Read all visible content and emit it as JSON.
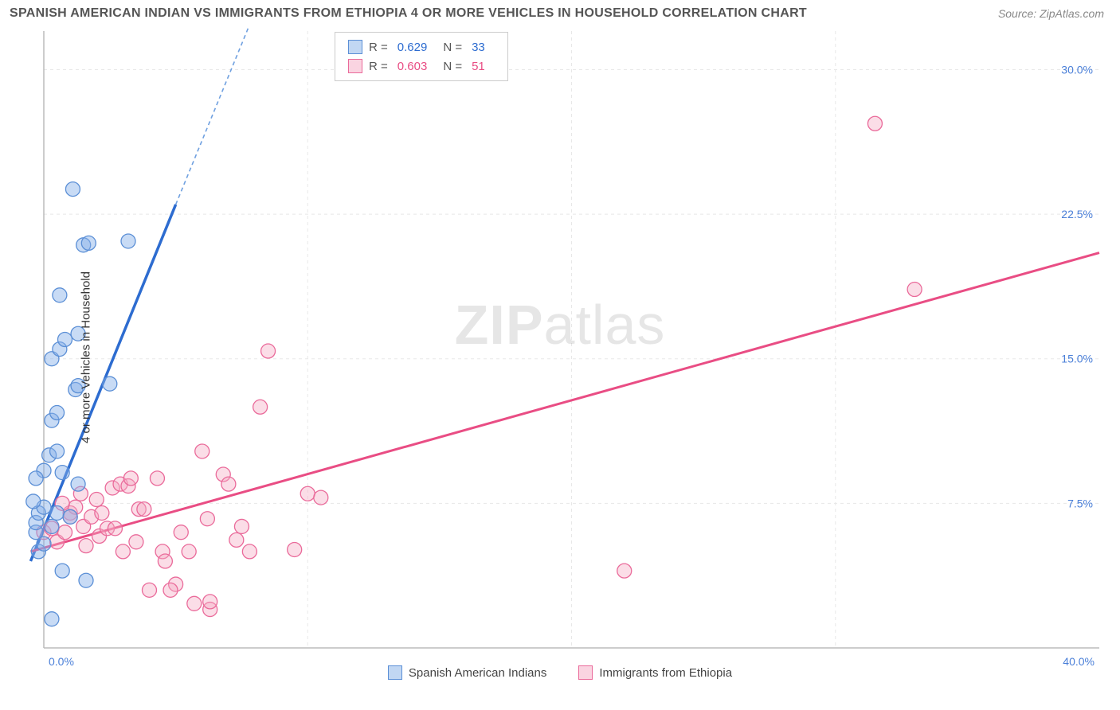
{
  "title": "SPANISH AMERICAN INDIAN VS IMMIGRANTS FROM ETHIOPIA 4 OR MORE VEHICLES IN HOUSEHOLD CORRELATION CHART",
  "source": "Source: ZipAtlas.com",
  "y_axis_label": "4 or more Vehicles in Household",
  "watermark_bold": "ZIP",
  "watermark_light": "atlas",
  "chart": {
    "type": "scatter",
    "xlim": [
      0,
      40
    ],
    "ylim": [
      0,
      32
    ],
    "x_ticks": [
      "0.0%",
      "40.0%"
    ],
    "y_ticks": [
      {
        "v": 7.5,
        "label": "7.5%"
      },
      {
        "v": 15.0,
        "label": "15.0%"
      },
      {
        "v": 22.5,
        "label": "22.5%"
      },
      {
        "v": 30.0,
        "label": "30.0%"
      }
    ],
    "series": [
      {
        "name": "Spanish American Indians",
        "color_fill": "rgba(132,175,232,0.45)",
        "color_stroke": "#5b8fd6",
        "R": "0.629",
        "N": "33",
        "trend": {
          "x1": -0.5,
          "y1": 4.5,
          "x2": 5.0,
          "y2": 23.0,
          "dash_to_x": 8.0,
          "dash_to_y": 33.0
        },
        "points": [
          [
            -0.2,
            5.0
          ],
          [
            -0.3,
            6.0
          ],
          [
            -0.3,
            6.5
          ],
          [
            -0.2,
            7.0
          ],
          [
            0.0,
            7.3
          ],
          [
            0.3,
            6.3
          ],
          [
            0.5,
            7.0
          ],
          [
            0.0,
            9.2
          ],
          [
            0.2,
            10.0
          ],
          [
            0.5,
            10.2
          ],
          [
            0.7,
            9.1
          ],
          [
            0.3,
            11.8
          ],
          [
            0.5,
            12.2
          ],
          [
            0.3,
            15.0
          ],
          [
            0.6,
            15.5
          ],
          [
            0.8,
            16.0
          ],
          [
            1.3,
            16.3
          ],
          [
            1.2,
            13.4
          ],
          [
            1.3,
            13.6
          ],
          [
            2.5,
            13.7
          ],
          [
            0.6,
            18.3
          ],
          [
            1.5,
            20.9
          ],
          [
            1.7,
            21.0
          ],
          [
            3.2,
            21.1
          ],
          [
            1.1,
            23.8
          ],
          [
            1.6,
            3.5
          ],
          [
            0.7,
            4.0
          ],
          [
            0.3,
            1.5
          ],
          [
            -0.3,
            8.8
          ],
          [
            -0.4,
            7.6
          ],
          [
            1.0,
            6.8
          ],
          [
            1.3,
            8.5
          ],
          [
            0.0,
            5.4
          ]
        ]
      },
      {
        "name": "Immigrants from Ethiopia",
        "color_fill": "rgba(245,170,195,0.4)",
        "color_stroke": "#ea6a9a",
        "R": "0.603",
        "N": "51",
        "trend": {
          "x1": -0.5,
          "y1": 5.0,
          "x2": 40.0,
          "y2": 20.5
        },
        "points": [
          [
            0.0,
            6.0
          ],
          [
            0.3,
            6.2
          ],
          [
            0.5,
            5.5
          ],
          [
            0.8,
            6.0
          ],
          [
            1.0,
            7.0
          ],
          [
            1.2,
            7.3
          ],
          [
            1.5,
            6.3
          ],
          [
            1.6,
            5.3
          ],
          [
            1.8,
            6.8
          ],
          [
            2.0,
            7.7
          ],
          [
            2.1,
            5.8
          ],
          [
            2.4,
            6.2
          ],
          [
            2.6,
            8.3
          ],
          [
            2.7,
            6.2
          ],
          [
            2.9,
            8.5
          ],
          [
            3.0,
            5.0
          ],
          [
            3.2,
            8.4
          ],
          [
            3.3,
            8.8
          ],
          [
            3.5,
            5.5
          ],
          [
            3.6,
            7.2
          ],
          [
            4.0,
            3.0
          ],
          [
            4.3,
            8.8
          ],
          [
            4.5,
            5.0
          ],
          [
            4.6,
            4.5
          ],
          [
            5.0,
            3.3
          ],
          [
            5.2,
            6.0
          ],
          [
            5.5,
            5.0
          ],
          [
            5.7,
            2.3
          ],
          [
            6.0,
            10.2
          ],
          [
            6.2,
            6.7
          ],
          [
            6.3,
            2.0
          ],
          [
            6.3,
            2.4
          ],
          [
            6.8,
            9.0
          ],
          [
            7.0,
            8.5
          ],
          [
            7.3,
            5.6
          ],
          [
            7.5,
            6.3
          ],
          [
            7.8,
            5.0
          ],
          [
            8.5,
            15.4
          ],
          [
            8.2,
            12.5
          ],
          [
            9.5,
            5.1
          ],
          [
            10.0,
            8.0
          ],
          [
            10.5,
            7.8
          ],
          [
            22.0,
            4.0
          ],
          [
            31.5,
            27.2
          ],
          [
            33.0,
            18.6
          ],
          [
            1.0,
            6.8
          ],
          [
            1.4,
            8.0
          ],
          [
            2.2,
            7.0
          ],
          [
            0.7,
            7.5
          ],
          [
            4.8,
            3.0
          ],
          [
            3.8,
            7.2
          ]
        ]
      }
    ]
  },
  "legend_top": {
    "R_label": "R =",
    "N_label": "N ="
  },
  "bottom_legend": [
    "Spanish American Indians",
    "Immigrants from Ethiopia"
  ]
}
